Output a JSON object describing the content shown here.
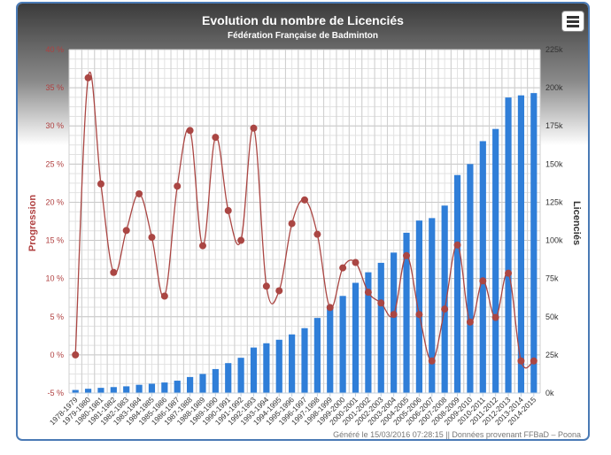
{
  "chart_data": {
    "type": "bar+line",
    "title": "Evolution du nombre de Licenciés",
    "subtitle": "Fédération Française de Badminton",
    "credits": "Généré le 15/03/2016 07:28:15 || Données provenant FFBaD – Poona",
    "categories": [
      "1978-1979",
      "1979-1980",
      "1980-1981",
      "1981-1982",
      "1982-1983",
      "1983-1984",
      "1984-1985",
      "1985-1986",
      "1986-1987",
      "1987-1988",
      "1988-1989",
      "1989-1990",
      "1990-1991",
      "1991-1992",
      "1992-1993",
      "1993-1994",
      "1994-1995",
      "1995-1996",
      "1996-1997",
      "1997-1998",
      "1998-1999",
      "1999-2000",
      "2000-2001",
      "2001-2002",
      "2002-2003",
      "2003-2004",
      "2004-2005",
      "2005-2006",
      "2006-2007",
      "2007-2008",
      "2008-2009",
      "2009-2010",
      "2010-2011",
      "2011-2012",
      "2012-2013",
      "2013-2014",
      "2014-2015"
    ],
    "y_left": {
      "label": "Progression",
      "min": -5,
      "max": 40,
      "step": 5,
      "ticks": [
        "-5 %",
        "0 %",
        "5 %",
        "10 %",
        "15 %",
        "20 %",
        "25 %",
        "30 %",
        "35 %",
        "40 %"
      ],
      "color": "#b04040"
    },
    "y_right": {
      "label": "Licenciés",
      "min": 0,
      "max": 225000,
      "step": 25000,
      "ticks": [
        "0k",
        "25k",
        "50k",
        "75k",
        "100k",
        "125k",
        "150k",
        "175k",
        "200k",
        "225k"
      ]
    },
    "series": [
      {
        "name": "Licenciés",
        "type": "bar",
        "axis": "right",
        "color": "#2f7ed8",
        "values": [
          2000,
          2800,
          3400,
          3900,
          4400,
          5400,
          6100,
          6900,
          8100,
          10500,
          12500,
          15700,
          19600,
          23100,
          29800,
          32600,
          34900,
          38400,
          42500,
          49200,
          57600,
          63600,
          72200,
          79100,
          85300,
          92000,
          105000,
          113000,
          114600,
          122800,
          142800,
          150000,
          165000,
          173000,
          193600,
          195000,
          196500
        ]
      },
      {
        "name": "Progression",
        "type": "spline",
        "axis": "left",
        "color": "#aa4643",
        "values": [
          0,
          36.3,
          22.4,
          10.8,
          16.3,
          21.1,
          15.4,
          7.7,
          22.1,
          29.4,
          14.3,
          28.5,
          18.9,
          15.0,
          29.7,
          9.0,
          8.4,
          17.2,
          20.3,
          15.8,
          6.2,
          11.4,
          12.1,
          8.2,
          6.8,
          5.3,
          13.0,
          5.3,
          -0.8,
          6.0,
          14.4,
          4.3,
          9.7,
          4.9,
          10.7,
          -0.8,
          -0.8
        ]
      }
    ],
    "grid": true,
    "legend": "none"
  },
  "ui": {
    "menu_icon": "hamburger-menu-icon"
  }
}
